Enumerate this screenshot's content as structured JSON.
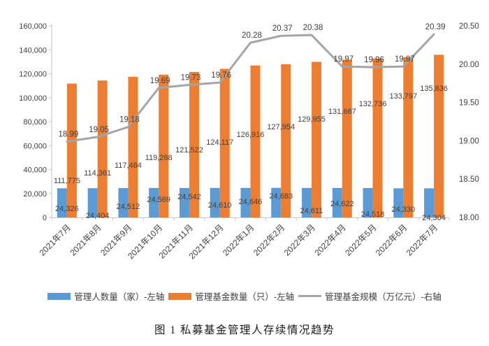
{
  "figure": {
    "caption": "图 1 私募基金管理人存续情况趋势"
  },
  "chart_data": {
    "type": "combo-bar-line",
    "title": "",
    "categories": [
      "2021年7月",
      "2021年8月",
      "2021年9月",
      "2021年10月",
      "2021年11月",
      "2021年12月",
      "2022年1月",
      "2022年2月",
      "2022年3月",
      "2022年4月",
      "2022年5月",
      "2022年6月",
      "2022年7月"
    ],
    "series": [
      {
        "name": "管理人数量（家）-左轴",
        "type": "bar",
        "axis": "left",
        "color": "#5B9BD5",
        "values": [
          24326,
          24404,
          24512,
          24569,
          24542,
          24610,
          24646,
          24683,
          24611,
          24622,
          24518,
          24330,
          24304
        ]
      },
      {
        "name": "管理基金数量（只）-左轴",
        "type": "bar",
        "axis": "left",
        "color": "#ED7D31",
        "values": [
          111775,
          114361,
          117484,
          119268,
          121522,
          124117,
          126916,
          127954,
          129955,
          131667,
          132736,
          133797,
          135836
        ]
      },
      {
        "name": "管理基金规模（万亿元）-右轴",
        "type": "line",
        "axis": "right",
        "color": "#A5A5A5",
        "values": [
          18.99,
          19.05,
          19.18,
          19.69,
          19.73,
          19.76,
          20.28,
          20.37,
          20.38,
          19.97,
          19.96,
          19.97,
          20.39
        ]
      }
    ],
    "left_axis": {
      "min": 0,
      "max": 160000,
      "step": 20000
    },
    "right_axis": {
      "min": 18.0,
      "max": 20.5,
      "step": 0.5
    },
    "grid": false,
    "legend_position": "bottom",
    "data_labels": true,
    "text_color": "#404040",
    "axis_line_color": "#C6C6C6"
  }
}
